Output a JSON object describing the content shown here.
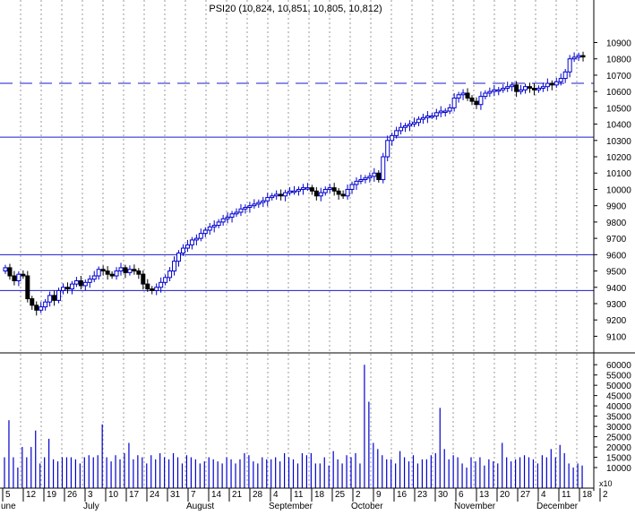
{
  "chart_data": {
    "type": "candlestick-with-volume",
    "title": "PSI20 (10,824, 10,851, 10,805, 10,812)",
    "colors": {
      "up": "#0000cc",
      "down": "#000000",
      "volume": "#0000cc",
      "gridline": "#9a9a9a",
      "reference": "#1a1acc",
      "axis": "#000000"
    },
    "price_axis": {
      "ylim": [
        9020,
        11040
      ],
      "ticks": [
        9100,
        9200,
        9300,
        9400,
        9500,
        9600,
        9700,
        9800,
        9900,
        10000,
        10100,
        10200,
        10300,
        10400,
        10500,
        10600,
        10700,
        10800,
        10900
      ]
    },
    "volume_axis": {
      "ylim": [
        0,
        64000
      ],
      "ticks": [
        10000,
        15000,
        20000,
        25000,
        30000,
        35000,
        40000,
        45000,
        50000,
        55000,
        60000
      ],
      "tick_labels": [
        "10000",
        "15000",
        "20000",
        "25000",
        "30000",
        "35000",
        "40000",
        "45000",
        "50000",
        "55000",
        "60000"
      ],
      "multiplier_label": "x10"
    },
    "reference_lines": [
      {
        "y": 10650,
        "style": "dashed"
      },
      {
        "y": 10320,
        "style": "solid"
      },
      {
        "y": 9600,
        "style": "solid"
      },
      {
        "y": 9380,
        "style": "solid"
      }
    ],
    "x_axis": {
      "day_labels": [
        "5",
        "12",
        "19",
        "26",
        "3",
        "10",
        "17",
        "24",
        "31",
        "7",
        "14",
        "21",
        "28",
        "4",
        "11",
        "18",
        "25",
        "2",
        "9",
        "16",
        "23",
        "30",
        "6",
        "13",
        "20",
        "27",
        "4",
        "11",
        "18",
        "2"
      ],
      "month_labels": [
        {
          "label": "une",
          "at": 0
        },
        {
          "label": "July",
          "at": 4
        },
        {
          "label": "August",
          "at": 9
        },
        {
          "label": "September",
          "at": 13
        },
        {
          "label": "October",
          "at": 17
        },
        {
          "label": "November",
          "at": 22
        },
        {
          "label": "December",
          "at": 26
        }
      ]
    },
    "candles_close": [
      9520,
      9470,
      9440,
      9480,
      9470,
      9330,
      9290,
      9260,
      9280,
      9310,
      9350,
      9320,
      9380,
      9400,
      9390,
      9420,
      9440,
      9410,
      9430,
      9450,
      9470,
      9510,
      9500,
      9480,
      9470,
      9500,
      9520,
      9490,
      9510,
      9500,
      9480,
      9420,
      9390,
      9380,
      9400,
      9430,
      9460,
      9500,
      9560,
      9610,
      9640,
      9660,
      9690,
      9700,
      9730,
      9750,
      9770,
      9780,
      9800,
      9820,
      9830,
      9850,
      9860,
      9880,
      9890,
      9900,
      9910,
      9920,
      9930,
      9950,
      9960,
      9970,
      9960,
      9980,
      9990,
      9990,
      10000,
      10010,
      10010,
      9990,
      9960,
      9980,
      10000,
      10010,
      9990,
      9970,
      9960,
      10000,
      10030,
      10050,
      10060,
      10070,
      10080,
      10100,
      10060,
      10200,
      10300,
      10330,
      10360,
      10380,
      10390,
      10400,
      10410,
      10430,
      10440,
      10450,
      10450,
      10470,
      10480,
      10480,
      10500,
      10560,
      10580,
      10590,
      10560,
      10540,
      10520,
      10570,
      10590,
      10600,
      10610,
      10610,
      10620,
      10630,
      10640,
      10600,
      10610,
      10630,
      10620,
      10610,
      10620,
      10630,
      10650,
      10640,
      10660,
      10680,
      10720,
      10800,
      10810,
      10820,
      10812
    ],
    "volume_values": [
      15000,
      33000,
      15000,
      10000,
      20000,
      15000,
      20000,
      28000,
      12000,
      15000,
      24000,
      14000,
      13000,
      15000,
      15000,
      15000,
      14000,
      12000,
      15000,
      16000,
      15000,
      16000,
      31000,
      15000,
      13000,
      16000,
      14000,
      17000,
      22000,
      14000,
      16000,
      15000,
      12000,
      16000,
      14000,
      17000,
      15000,
      14000,
      17000,
      15000,
      12000,
      16000,
      15000,
      14000,
      12000,
      13000,
      15000,
      14000,
      13000,
      12000,
      15000,
      14000,
      12000,
      14000,
      17000,
      16000,
      13000,
      12000,
      15000,
      14000,
      14000,
      15000,
      13000,
      17000,
      15000,
      14000,
      12000,
      17000,
      16000,
      17000,
      12000,
      12000,
      15000,
      11000,
      18000,
      14000,
      12000,
      16000,
      15000,
      17000,
      12000,
      60000,
      42000,
      22000,
      19000,
      16000,
      14000,
      14000,
      12000,
      18000,
      15000,
      13000,
      16000,
      12000,
      14000,
      14000,
      16000,
      17000,
      39000,
      19000,
      14000,
      16000,
      15000,
      12000,
      10000,
      15000,
      13000,
      15000,
      11000,
      14000,
      13000,
      12000,
      22000,
      15000,
      13000,
      14000,
      15000,
      16000,
      15000,
      14000,
      12000,
      16000,
      15000,
      19000,
      15000,
      21000,
      17000,
      12000,
      10000,
      12000,
      11000
    ]
  }
}
